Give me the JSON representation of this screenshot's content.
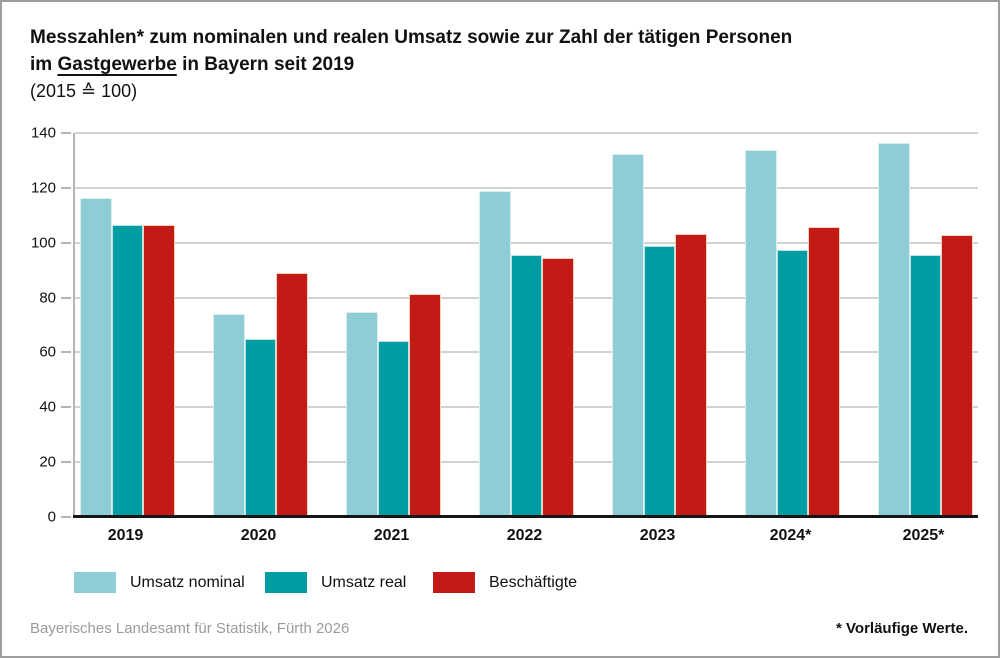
{
  "title": {
    "line1": "Messzahlen* zum nominalen und realen Umsatz sowie zur Zahl der tätigen Personen",
    "line2_prefix": "im",
    "line2_underlined": "Gastgewerbe",
    "line2_suffix": "in Bayern seit 2019",
    "line3": "(2015 ≙ 100)"
  },
  "chart_data": {
    "type": "bar",
    "title": "Messzahlen zum nominalen und realen Umsatz sowie zur Zahl der tätigen Personen im Gastgewerbe in Bayern seit 2019 (2015 ≙ 100)",
    "categories": [
      "2019",
      "2020",
      "2021",
      "2022",
      "2023",
      "2024*",
      "2025*"
    ],
    "series": [
      {
        "key": "umsatz-nominal",
        "name": "Umsatz nominal",
        "color": "#8ECDD5",
        "edge_color": "#D9EEF1",
        "values": [
          116.4,
          73.9,
          74.6,
          119.0,
          132.4,
          133.8,
          136.5
        ]
      },
      {
        "key": "umsatz-real",
        "name": "Umsatz real",
        "color": "#009CA3",
        "edge_color": "#BCE2E4",
        "values": [
          106.5,
          65.0,
          64.2,
          95.4,
          99.0,
          97.3,
          95.7
        ]
      },
      {
        "key": "beschaeftigte",
        "name": "Beschäftigte",
        "color": "#C21B17",
        "edge_color": "#F0D5B6",
        "values": [
          106.5,
          89.0,
          81.3,
          94.6,
          103.2,
          105.8,
          102.9
        ]
      }
    ],
    "xlabel": "",
    "ylabel": "",
    "ylim": [
      0,
      140
    ],
    "ytick_step": 20,
    "grid": true,
    "legend_position": "bottom"
  },
  "colors": {
    "grid": "#d2d2d2",
    "axis": "#b5b5b5",
    "baseline": "#151515",
    "text": "#111111",
    "muted_text": "#9b9b9b",
    "background": "#ffffff",
    "frame_border": "#9e9e9e"
  },
  "footer": {
    "source": "Bayerisches Landesamt für Statistik, Fürth 2026",
    "note": "* Vorläufige Werte."
  }
}
